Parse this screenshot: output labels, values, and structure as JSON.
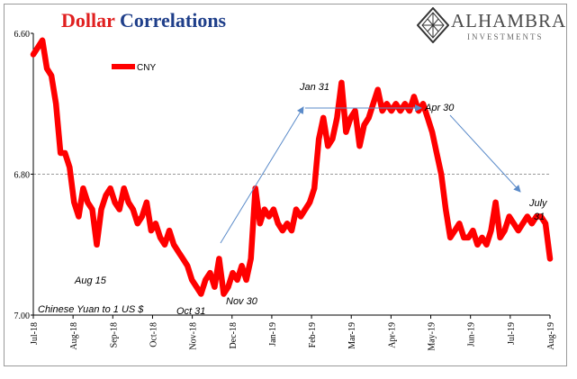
{
  "title": {
    "part1": "Dollar",
    "part2": "Correlations"
  },
  "logo": {
    "brand": "ALHAMBRA",
    "sub": "INVESTMENTS"
  },
  "colors": {
    "series": "#ff0000",
    "title_red": "#e02020",
    "title_blue": "#1f3f8a",
    "arrow": "#5b8bc9"
  },
  "chart_data": {
    "type": "line",
    "ylim": [
      6.6,
      7.0
    ],
    "y_inverted": true,
    "yticks": [
      "6.60",
      "6.80",
      "7.00"
    ],
    "grid": "horizontal dashed at 6.80",
    "xticks": [
      "Jul-18",
      "Aug-18",
      "Sep-18",
      "Oct-18",
      "Nov-18",
      "Dec-18",
      "Jan-19",
      "Feb-19",
      "Mar-19",
      "Apr-19",
      "May-19",
      "Jun-19",
      "Jul-19",
      "Aug-19"
    ],
    "legend": {
      "position": "top-left",
      "label": "CNY"
    },
    "footnote": "Chinese Yuan to 1 US $",
    "series": [
      {
        "name": "CNY",
        "values": [
          6.63,
          6.62,
          6.61,
          6.65,
          6.66,
          6.7,
          6.77,
          6.77,
          6.79,
          6.84,
          6.86,
          6.82,
          6.84,
          6.85,
          6.9,
          6.85,
          6.83,
          6.82,
          6.84,
          6.85,
          6.82,
          6.84,
          6.85,
          6.87,
          6.86,
          6.84,
          6.88,
          6.87,
          6.89,
          6.9,
          6.88,
          6.9,
          6.91,
          6.92,
          6.93,
          6.95,
          6.96,
          6.97,
          6.95,
          6.94,
          6.96,
          6.92,
          6.97,
          6.96,
          6.94,
          6.95,
          6.93,
          6.95,
          6.92,
          6.82,
          6.87,
          6.85,
          6.86,
          6.85,
          6.87,
          6.88,
          6.87,
          6.88,
          6.85,
          6.86,
          6.85,
          6.84,
          6.82,
          6.75,
          6.72,
          6.76,
          6.75,
          6.72,
          6.67,
          6.74,
          6.72,
          6.71,
          6.76,
          6.73,
          6.72,
          6.7,
          6.68,
          6.71,
          6.7,
          6.71,
          6.7,
          6.71,
          6.7,
          6.71,
          6.69,
          6.71,
          6.7,
          6.72,
          6.74,
          6.77,
          6.8,
          6.85,
          6.89,
          6.88,
          6.87,
          6.89,
          6.89,
          6.88,
          6.9,
          6.89,
          6.9,
          6.88,
          6.84,
          6.89,
          6.88,
          6.86,
          6.87,
          6.88,
          6.87,
          6.86,
          6.87,
          6.86,
          6.86,
          6.87,
          6.92
        ]
      }
    ],
    "annotations": [
      {
        "text": "Aug 15",
        "x": "Aug 15",
        "y": 6.94
      },
      {
        "text": "Oct 31",
        "x": "Oct 31",
        "y": 6.97
      },
      {
        "text": "Nov 30",
        "x": "Nov 30",
        "y": 6.93
      },
      {
        "text": "Jan 31",
        "x": "Jan 31",
        "y": 6.67
      },
      {
        "text": "Apr 30",
        "x": "Apr 30",
        "y": 6.71
      },
      {
        "text": "July",
        "x": "July 31",
        "y": 6.84
      },
      {
        "text": "31",
        "x": "July 31",
        "y": 6.86
      }
    ],
    "arrows": [
      {
        "from_label": "Nov 30",
        "to_label": "Jan 31"
      },
      {
        "from_label": "Jan 31",
        "to_label": "Apr 30"
      },
      {
        "from_label": "Apr 30",
        "to_label": "July 31"
      }
    ]
  }
}
